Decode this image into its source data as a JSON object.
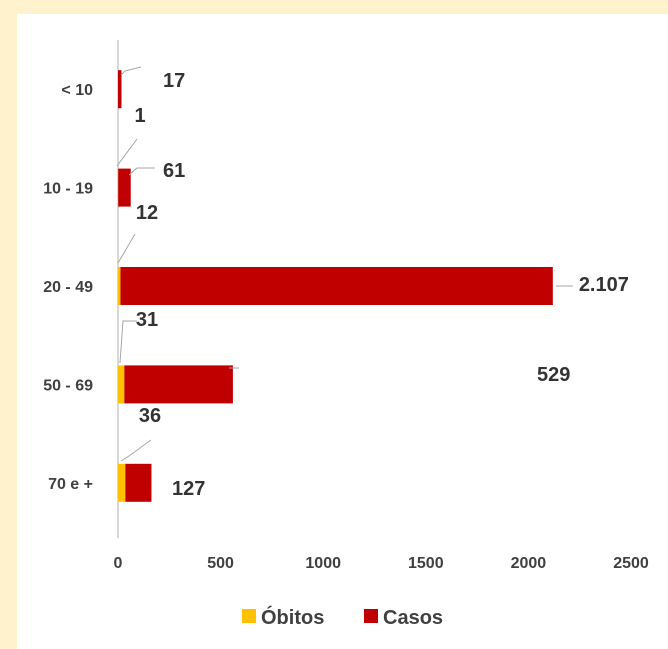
{
  "chart_data": {
    "type": "bar",
    "orientation": "horizontal",
    "stacked": true,
    "categories": [
      "< 10",
      "10 - 19",
      "20 - 49",
      "50 - 69",
      "70 e +"
    ],
    "series": [
      {
        "name": "Óbitos",
        "color": "#ffc000",
        "values": [
          0,
          1,
          12,
          31,
          36
        ],
        "labels": [
          "",
          "1",
          "12",
          "31",
          "36"
        ]
      },
      {
        "name": "Casos",
        "color": "#c00000",
        "values": [
          17,
          61,
          2107,
          529,
          127
        ],
        "labels": [
          "17",
          "61",
          "2.107",
          "529",
          "127"
        ]
      }
    ],
    "xlim": [
      0,
      2500
    ],
    "xticks": [
      "0",
      "500",
      "1000",
      "1500",
      "2000",
      "2500"
    ],
    "grid": false,
    "legend_position": "bottom"
  }
}
